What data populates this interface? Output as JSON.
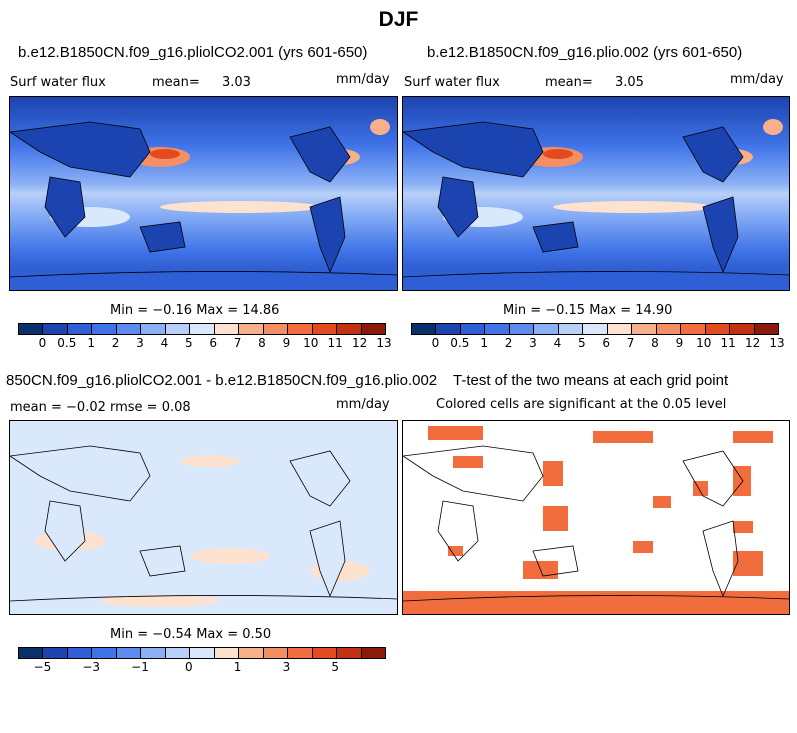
{
  "title": "DJF",
  "panel1": {
    "title": "b.e12.B1850CN.f09_g16.pliolCO2.001 (yrs 601-650)",
    "var": "Surf water flux",
    "mean_label": "mean=",
    "mean_value": "3.03",
    "units": "mm/day",
    "minmax": "Min =  −0.16 Max =  14.86"
  },
  "panel2": {
    "title": "b.e12.B1850CN.f09_g16.plio.002 (yrs 601-650)",
    "var": "Surf water flux",
    "mean_label": "mean=",
    "mean_value": "3.05",
    "units": "mm/day",
    "minmax": "Min =  −0.15 Max =  14.90"
  },
  "panel3": {
    "title": "850CN.f09_g16.pliolCO2.001 - b.e12.B1850CN.f09_g16.plio.002",
    "stats": "mean =  −0.02    rmse =   0.08",
    "units": "mm/day",
    "minmax": "Min =  −0.54 Max =   0.50"
  },
  "panel4": {
    "title": "T-test of the two means at each grid point",
    "subtitle": "Colored cells are significant at the 0.05 level"
  },
  "colorbar_main": {
    "labels": [
      "0",
      "0.5",
      "1",
      "2",
      "3",
      "4",
      "5",
      "6",
      "7",
      "8",
      "9",
      "10",
      "11",
      "12",
      "13"
    ],
    "colors": [
      "#08306b",
      "#1c44b0",
      "#2f5fd6",
      "#3f73e8",
      "#5c8cef",
      "#8ab0f5",
      "#b8d0f8",
      "#dae8fb",
      "#fde3cf",
      "#f8b08a",
      "#f48f63",
      "#f26d3d",
      "#e34a20",
      "#c23112",
      "#8b1a08"
    ]
  },
  "colorbar_diff": {
    "labels": [
      "−5",
      "−3",
      "−1",
      "0",
      "1",
      "3",
      "5"
    ],
    "colors": [
      "#08306b",
      "#1c44b0",
      "#2f5fd6",
      "#3f73e8",
      "#5c8cef",
      "#8ab0f5",
      "#b8d0f8",
      "#dae8fb",
      "#fde3cf",
      "#f8b08a",
      "#f48f63",
      "#f26d3d",
      "#e34a20",
      "#c23112",
      "#8b1a08"
    ]
  },
  "signif_color": "#f26d3d"
}
